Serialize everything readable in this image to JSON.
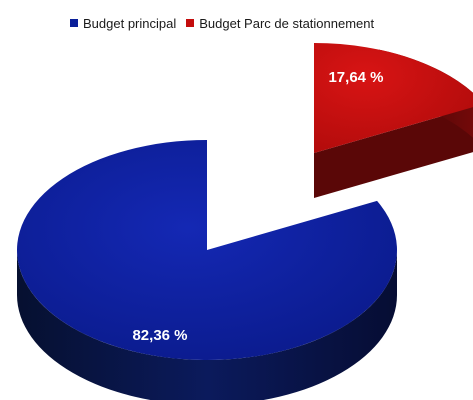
{
  "chart_data": {
    "type": "pie",
    "title": "",
    "categories": [
      "Budget principal",
      "Budget Parc de stationnement"
    ],
    "values": [
      82.36,
      17.64
    ],
    "labels": [
      "82,36 %",
      "17,64 %"
    ],
    "colors": [
      "#0a1f99",
      "#c40d0d"
    ],
    "side_colors": [
      "#0a123d",
      "#5a0707"
    ],
    "exploded": [
      false,
      true
    ],
    "legend_position": "top"
  }
}
